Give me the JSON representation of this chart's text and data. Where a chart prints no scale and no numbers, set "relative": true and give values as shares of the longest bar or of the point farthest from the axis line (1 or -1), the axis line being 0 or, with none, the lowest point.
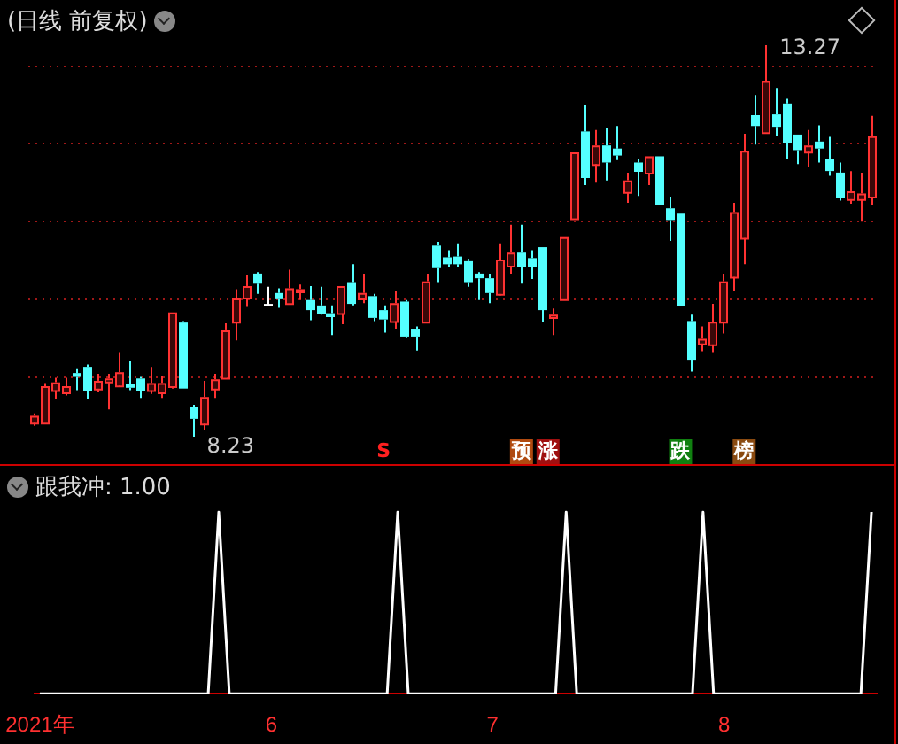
{
  "chart_data": [
    {
      "type": "candlestick",
      "title": "(日线 前复权)",
      "categories": [
        null,
        null,
        null,
        null,
        null,
        null,
        null,
        null,
        null,
        null,
        null,
        null,
        null,
        null,
        null,
        null,
        null,
        null,
        null,
        null,
        null,
        null,
        null,
        null,
        null,
        null,
        null,
        null,
        null,
        null,
        null,
        null,
        null,
        null,
        null,
        null,
        null,
        null,
        null,
        null,
        null,
        null,
        null,
        null,
        null,
        null,
        null,
        null,
        null,
        null,
        null,
        null,
        null,
        null,
        null,
        null,
        null,
        null,
        null,
        null,
        null,
        null,
        null,
        null,
        null,
        null,
        null,
        null,
        null,
        null,
        null,
        null,
        null,
        null,
        null,
        null,
        null,
        null,
        null,
        null
      ],
      "ohlc": [
        [
          8.41,
          8.53,
          8.37,
          8.5
        ],
        [
          8.41,
          8.92,
          8.41,
          8.88
        ],
        [
          8.83,
          8.99,
          8.71,
          8.93
        ],
        [
          8.8,
          8.99,
          8.76,
          8.88
        ],
        [
          9.05,
          9.1,
          8.83,
          9.0
        ],
        [
          9.13,
          9.16,
          8.71,
          8.82
        ],
        [
          8.85,
          9.04,
          8.8,
          8.95
        ],
        [
          8.94,
          9.04,
          8.58,
          8.98
        ],
        [
          8.89,
          9.32,
          8.88,
          9.06
        ],
        [
          8.91,
          9.2,
          8.83,
          8.86
        ],
        [
          8.98,
          9.0,
          8.73,
          8.82
        ],
        [
          8.83,
          9.13,
          8.78,
          8.92
        ],
        [
          8.8,
          9.01,
          8.73,
          8.92
        ],
        [
          8.88,
          9.83,
          8.85,
          9.83
        ],
        [
          9.7,
          9.72,
          8.85,
          8.85
        ],
        [
          8.61,
          8.64,
          8.23,
          8.46
        ],
        [
          8.4,
          8.95,
          8.32,
          8.74
        ],
        [
          8.85,
          9.04,
          8.73,
          8.97
        ],
        [
          8.99,
          9.69,
          8.99,
          9.6
        ],
        [
          9.71,
          10.13,
          9.47,
          10.01
        ],
        [
          10.02,
          10.31,
          9.9,
          10.17
        ],
        [
          10.33,
          10.35,
          10.07,
          10.2
        ],
        [
          9.94,
          10.16,
          9.93,
          9.94
        ],
        [
          10.08,
          10.14,
          9.89,
          10.0
        ],
        [
          9.95,
          10.38,
          9.95,
          10.14
        ],
        [
          10.1,
          10.19,
          9.99,
          10.13
        ],
        [
          9.99,
          10.17,
          9.73,
          9.86
        ],
        [
          9.92,
          10.16,
          9.8,
          9.81
        ],
        [
          9.82,
          9.92,
          9.54,
          9.77
        ],
        [
          9.82,
          10.17,
          9.68,
          10.17
        ],
        [
          10.22,
          10.45,
          9.92,
          9.94
        ],
        [
          10.01,
          10.33,
          9.95,
          10.08
        ],
        [
          10.04,
          10.07,
          9.72,
          9.76
        ],
        [
          9.86,
          9.92,
          9.57,
          9.74
        ],
        [
          9.72,
          10.11,
          9.62,
          9.95
        ],
        [
          9.97,
          9.99,
          9.5,
          9.52
        ],
        [
          9.61,
          9.65,
          9.34,
          9.52
        ],
        [
          9.71,
          10.33,
          9.71,
          10.23
        ],
        [
          10.69,
          10.74,
          10.22,
          10.4
        ],
        [
          10.54,
          10.63,
          10.41,
          10.45
        ],
        [
          10.55,
          10.72,
          10.41,
          10.45
        ],
        [
          10.49,
          10.52,
          10.16,
          10.22
        ],
        [
          10.33,
          10.35,
          9.99,
          10.27
        ],
        [
          10.27,
          10.33,
          9.95,
          10.08
        ],
        [
          10.07,
          10.72,
          10.05,
          10.51
        ],
        [
          10.43,
          10.96,
          10.33,
          10.6
        ],
        [
          10.6,
          10.96,
          10.2,
          10.41
        ],
        [
          10.53,
          10.63,
          10.26,
          10.41
        ],
        [
          10.67,
          10.67,
          9.71,
          9.86
        ],
        [
          9.77,
          9.88,
          9.54,
          9.8
        ],
        [
          10.0,
          10.8,
          10.0,
          10.8
        ],
        [
          11.04,
          11.89,
          11.04,
          11.89
        ],
        [
          12.16,
          12.5,
          11.47,
          11.56
        ],
        [
          11.74,
          12.18,
          11.5,
          11.98
        ],
        [
          11.98,
          12.21,
          11.53,
          11.76
        ],
        [
          11.94,
          12.23,
          11.79,
          11.85
        ],
        [
          11.38,
          11.63,
          11.24,
          11.53
        ],
        [
          11.76,
          11.8,
          11.33,
          11.64
        ],
        [
          11.63,
          11.84,
          11.47,
          11.84
        ],
        [
          11.84,
          11.84,
          11.21,
          11.21
        ],
        [
          11.17,
          11.32,
          10.75,
          11.02
        ],
        [
          11.1,
          11.1,
          9.91,
          9.91
        ],
        [
          9.72,
          9.8,
          9.07,
          9.21
        ],
        [
          9.43,
          9.65,
          9.33,
          9.49
        ],
        [
          9.42,
          9.94,
          9.32,
          9.71
        ],
        [
          9.71,
          10.33,
          9.56,
          10.23
        ],
        [
          10.29,
          11.24,
          10.11,
          11.12
        ],
        [
          10.79,
          12.13,
          10.45,
          11.91
        ],
        [
          12.37,
          12.63,
          11.99,
          12.23
        ],
        [
          12.15,
          13.27,
          12.15,
          12.81
        ],
        [
          12.38,
          12.72,
          12.1,
          12.22
        ],
        [
          12.52,
          12.58,
          11.8,
          12.01
        ],
        [
          12.12,
          12.12,
          11.74,
          11.92
        ],
        [
          11.9,
          12.18,
          11.7,
          11.98
        ],
        [
          12.03,
          12.24,
          11.76,
          11.94
        ],
        [
          11.8,
          12.09,
          11.59,
          11.65
        ],
        [
          11.63,
          11.76,
          11.27,
          11.3
        ],
        [
          11.29,
          11.65,
          11.23,
          11.39
        ],
        [
          11.29,
          11.63,
          11.0,
          11.36
        ],
        [
          11.32,
          12.36,
          11.21,
          12.1
        ]
      ],
      "yticks": [
        {
          "value": 9,
          "label": null
        },
        {
          "value": 10,
          "label": null
        },
        {
          "value": 11,
          "label": null
        },
        {
          "value": 12,
          "label": null
        },
        {
          "value": 13,
          "label": null
        }
      ],
      "grid": "y",
      "tick_labels": false,
      "legend": false,
      "annotations": [
        "S",
        "预",
        "涨",
        "跌",
        "榜",
        "13.27",
        "8.23"
      ]
    },
    {
      "type": "line",
      "title": "跟我冲: 1.00",
      "relative": true,
      "marker": "none",
      "legend": false,
      "tick_labels": "x",
      "categories": [
        "2021年",
        null,
        null,
        null,
        null,
        null,
        null,
        null,
        null,
        null,
        null,
        null,
        null,
        null,
        null,
        null,
        null,
        null,
        null,
        null,
        null,
        null,
        "6",
        null,
        null,
        null,
        null,
        null,
        null,
        null,
        null,
        null,
        null,
        null,
        null,
        null,
        null,
        null,
        null,
        null,
        null,
        null,
        null,
        "7",
        null,
        null,
        null,
        null,
        null,
        null,
        null,
        null,
        null,
        null,
        null,
        null,
        null,
        null,
        null,
        null,
        null,
        null,
        null,
        null,
        null,
        "8",
        null,
        null,
        null,
        null,
        null,
        null,
        null,
        null,
        null,
        null,
        null,
        null,
        null,
        null
      ],
      "series": [
        {
          "color": "#ffffff",
          "values": [
            0,
            0,
            0,
            0,
            0,
            0,
            0,
            0,
            0,
            0,
            0,
            0,
            0,
            0,
            0,
            0,
            0,
            1,
            0,
            0,
            0,
            0,
            0,
            0,
            0,
            0,
            0,
            0,
            0,
            0,
            0,
            0,
            0,
            0,
            1,
            0,
            0,
            0,
            0,
            0,
            0,
            0,
            0,
            0,
            0,
            0,
            0,
            0,
            0,
            0,
            1,
            0,
            0,
            0,
            0,
            0,
            0,
            0,
            0,
            0,
            0,
            0,
            0,
            1,
            0,
            0,
            0,
            0,
            0,
            0,
            0,
            0,
            0,
            0,
            0,
            0,
            0,
            0,
            0,
            1
          ]
        }
      ]
    }
  ]
}
